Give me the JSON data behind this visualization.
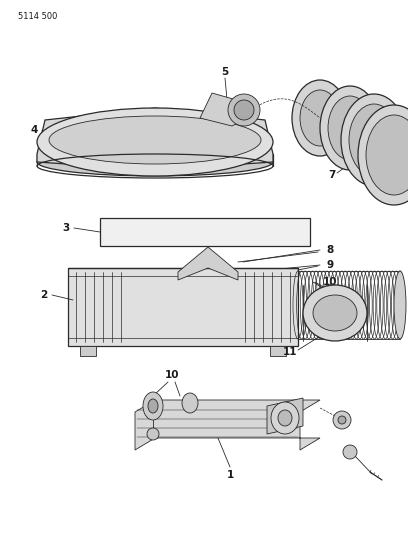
{
  "title_code": "5114 500",
  "bg_color": "#ffffff",
  "line_color": "#2a2a2a",
  "label_color": "#1a1a1a",
  "figsize": [
    4.08,
    5.33
  ],
  "dpi": 100,
  "fig_w": 408,
  "fig_h": 533
}
